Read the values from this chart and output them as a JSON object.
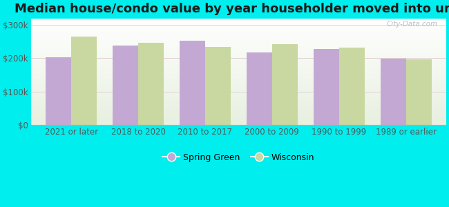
{
  "title": "Median house/condo value by year householder moved into unit",
  "categories": [
    "2021 or later",
    "2018 to 2020",
    "2010 to 2017",
    "2000 to 2009",
    "1990 to 1999",
    "1989 or earlier"
  ],
  "spring_green_values": [
    203000,
    238000,
    253000,
    218000,
    228000,
    198000
  ],
  "wisconsin_values": [
    265000,
    247000,
    235000,
    242000,
    232000,
    197000
  ],
  "spring_green_color": "#C4A8D4",
  "wisconsin_color": "#C8D8A0",
  "background_color": "#00EEEE",
  "plot_bg_top": "#FFFFFF",
  "plot_bg_bottom": "#E8F0E0",
  "ylim": [
    0,
    320000
  ],
  "yticks": [
    0,
    100000,
    200000,
    300000
  ],
  "ytick_labels": [
    "$0",
    "$100k",
    "$200k",
    "$300k"
  ],
  "bar_width": 0.38,
  "legend_labels": [
    "Spring Green",
    "Wisconsin"
  ],
  "watermark": "City-Data.com",
  "title_fontsize": 13,
  "tick_fontsize": 8.5,
  "grid_color": "#DDDDDD"
}
